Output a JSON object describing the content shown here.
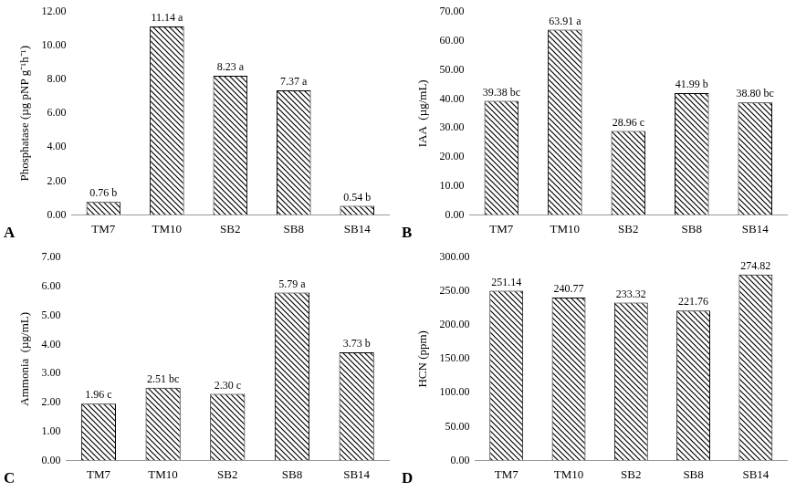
{
  "chart_data": [
    {
      "type": "bar",
      "title": "A",
      "y_label": "Phosphatase (µg pNP g⁻¹h⁻¹)",
      "categories": [
        "TM7",
        "TM10",
        "SB2",
        "SB8",
        "SB14"
      ],
      "values": [
        0.76,
        11.14,
        8.23,
        7.37,
        0.54
      ],
      "value_labels": [
        "0.76 b",
        "11.14 a",
        "8.23 a",
        "7.37 a",
        "0.54 b"
      ],
      "color": "#000000",
      "ylim": [
        0,
        12
      ],
      "yticks": [
        {
          "value": 0,
          "label": "0.00"
        },
        {
          "value": 2,
          "label": "2.00"
        },
        {
          "value": 4,
          "label": "4.00"
        },
        {
          "value": 6,
          "label": "6.00"
        },
        {
          "value": 8,
          "label": "8.00"
        },
        {
          "value": 10,
          "label": "10.00"
        },
        {
          "value": 12,
          "label": "12.00"
        }
      ],
      "grid": false,
      "data_labels": true
    },
    {
      "type": "bar",
      "title": "B",
      "y_label": "IAA  (µg/mL)",
      "categories": [
        "TM7",
        "TM10",
        "SB2",
        "SB8",
        "SB14"
      ],
      "values": [
        39.38,
        63.91,
        28.96,
        41.99,
        38.8
      ],
      "value_labels": [
        "39.38 bc",
        "63.91 a",
        "28.96 c",
        "41.99 b",
        "38.80 bc"
      ],
      "color": "#000000",
      "ylim": [
        0,
        70
      ],
      "yticks": [
        {
          "value": 0,
          "label": "0.00"
        },
        {
          "value": 10,
          "label": "10.00"
        },
        {
          "value": 20,
          "label": "20.00"
        },
        {
          "value": 30,
          "label": "30.00"
        },
        {
          "value": 40,
          "label": "40.00"
        },
        {
          "value": 50,
          "label": "50.00"
        },
        {
          "value": 60,
          "label": "60.00"
        },
        {
          "value": 70,
          "label": "70.00"
        }
      ],
      "grid": false,
      "data_labels": true
    },
    {
      "type": "bar",
      "title": "C",
      "y_label": "Ammonia  (µg/mL)",
      "categories": [
        "TM7",
        "TM10",
        "SB2",
        "SB8",
        "SB14"
      ],
      "values": [
        1.96,
        2.51,
        2.3,
        5.79,
        3.73
      ],
      "value_labels": [
        "1.96 c",
        "2.51 bc",
        "2.30 c",
        "5.79 a",
        "3.73 b"
      ],
      "color": "#000000",
      "ylim": [
        0,
        7
      ],
      "yticks": [
        {
          "value": 0,
          "label": "0.00"
        },
        {
          "value": 1,
          "label": "1.00"
        },
        {
          "value": 2,
          "label": "2.00"
        },
        {
          "value": 3,
          "label": "3.00"
        },
        {
          "value": 4,
          "label": "4.00"
        },
        {
          "value": 5,
          "label": "5.00"
        },
        {
          "value": 6,
          "label": "6.00"
        },
        {
          "value": 7,
          "label": "7.00"
        }
      ],
      "grid": false,
      "data_labels": true
    },
    {
      "type": "bar",
      "title": "D",
      "y_label": "HCN (ppm)",
      "categories": [
        "TM7",
        "TM10",
        "SB2",
        "SB8",
        "SB14"
      ],
      "values": [
        251.14,
        240.77,
        233.32,
        221.76,
        274.82
      ],
      "value_labels": [
        "251.14",
        "240.77",
        "233.32",
        "221.76",
        "274.82"
      ],
      "color": "#000000",
      "ylim": [
        0,
        300
      ],
      "yticks": [
        {
          "value": 0,
          "label": "0.00"
        },
        {
          "value": 50,
          "label": "50.00"
        },
        {
          "value": 100,
          "label": "100.00"
        },
        {
          "value": 150,
          "label": "150.00"
        },
        {
          "value": 200,
          "label": "200.00"
        },
        {
          "value": 250,
          "label": "250.00"
        },
        {
          "value": 300,
          "label": "300.00"
        }
      ],
      "grid": false,
      "data_labels": true
    }
  ]
}
